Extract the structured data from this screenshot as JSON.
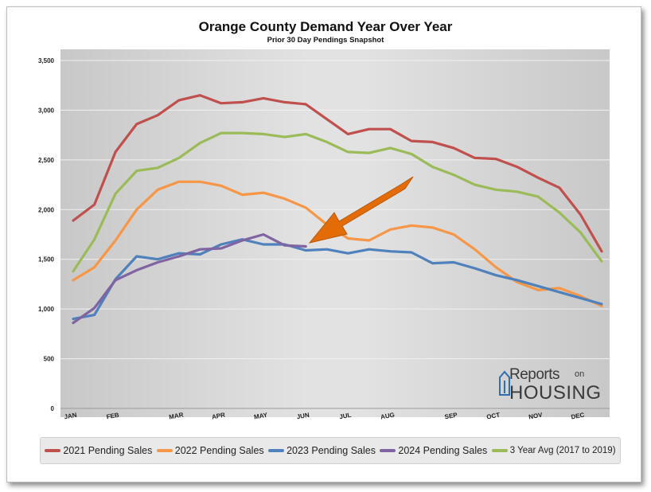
{
  "chart_data": {
    "type": "line",
    "title": "Orange County Demand Year Over Year",
    "subtitle": "Prior 30 Day Pendings Snapshot",
    "ylim": [
      0,
      3500
    ],
    "yticks": [
      "0",
      "500",
      "1,000",
      "1,500",
      "2,000",
      "2,500",
      "3,000",
      "3,500"
    ],
    "ytick_values": [
      0,
      500,
      1000,
      1500,
      2000,
      2500,
      3000,
      3500
    ],
    "x_count": 26,
    "xticks": [
      {
        "label": "JAN",
        "index": 0
      },
      {
        "label": "FEB",
        "index": 2
      },
      {
        "label": "MAR",
        "index": 5
      },
      {
        "label": "APR",
        "index": 7
      },
      {
        "label": "MAY",
        "index": 9
      },
      {
        "label": "JUN",
        "index": 11
      },
      {
        "label": "JUL",
        "index": 13
      },
      {
        "label": "AUG",
        "index": 15
      },
      {
        "label": "SEP",
        "index": 18
      },
      {
        "label": "OCT",
        "index": 20
      },
      {
        "label": "NOV",
        "index": 22
      },
      {
        "label": "DEC",
        "index": 24
      }
    ],
    "grid": true,
    "legend_position": "bottom",
    "series": [
      {
        "name": "2021 Pending Sales",
        "color": "#c0504d",
        "values": [
          1890,
          2050,
          2580,
          2860,
          2950,
          3100,
          3150,
          3070,
          3080,
          3120,
          3080,
          3060,
          2910,
          2760,
          2810,
          2810,
          2690,
          2680,
          2620,
          2520,
          2510,
          2430,
          2320,
          2220,
          1950,
          1580
        ]
      },
      {
        "name": "2022 Pending Sales",
        "color": "#f79646",
        "values": [
          1290,
          1420,
          1690,
          2000,
          2200,
          2280,
          2280,
          2240,
          2150,
          2170,
          2110,
          2020,
          1850,
          1710,
          1690,
          1800,
          1840,
          1820,
          1750,
          1600,
          1420,
          1270,
          1190,
          1210,
          1130,
          1030
        ]
      },
      {
        "name": "2023 Pending Sales",
        "color": "#4f81bd",
        "values": [
          900,
          940,
          1300,
          1530,
          1500,
          1560,
          1550,
          1650,
          1700,
          1650,
          1650,
          1590,
          1600,
          1560,
          1600,
          1580,
          1570,
          1460,
          1470,
          1410,
          1340,
          1290,
          1230,
          1170,
          1110,
          1050
        ]
      },
      {
        "name": "2024 Pending Sales",
        "color": "#8064a2",
        "values": [
          860,
          1010,
          1290,
          1390,
          1470,
          1530,
          1600,
          1610,
          1690,
          1750,
          1640,
          1630,
          null,
          null,
          null,
          null,
          null,
          null,
          null,
          null,
          null,
          null,
          null,
          null,
          null,
          null
        ]
      },
      {
        "name": "3 Year Avg (2017 to 2019)",
        "color": "#9bbb59",
        "values": [
          1380,
          1700,
          2160,
          2390,
          2420,
          2520,
          2670,
          2770,
          2770,
          2760,
          2730,
          2760,
          2680,
          2580,
          2570,
          2620,
          2560,
          2430,
          2350,
          2250,
          2200,
          2180,
          2130,
          1970,
          1770,
          1480
        ]
      }
    ]
  },
  "logo": {
    "part1": "Reports",
    "part2": "on",
    "part3": "HOUSING"
  }
}
